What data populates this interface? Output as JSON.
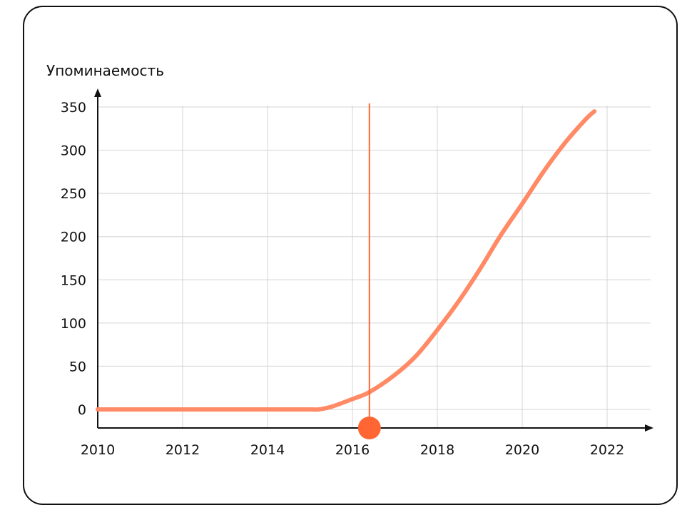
{
  "chart_data": {
    "type": "line",
    "title": "",
    "ylabel": "Упоминаемость",
    "xlabel": "",
    "xlim": [
      2010,
      2023
    ],
    "ylim": [
      -20,
      350
    ],
    "xticks": [
      2010,
      2012,
      2014,
      2016,
      2018,
      2020,
      2022
    ],
    "yticks": [
      0,
      50,
      100,
      150,
      200,
      250,
      300,
      350
    ],
    "grid": true,
    "colors": {
      "series": "#ff8a65",
      "marker": "#ff6633",
      "axis": "#111111",
      "grid": "#d4d4d4"
    },
    "series": [
      {
        "x": [
          2010,
          2011,
          2012,
          2013,
          2014,
          2015,
          2015.2,
          2015.5,
          2016,
          2016.4,
          2017,
          2017.5,
          2018,
          2018.5,
          2019,
          2019.5,
          2020,
          2020.5,
          2021,
          2021.5,
          2021.7
        ],
        "y": [
          0,
          0,
          0,
          0,
          0,
          0,
          0,
          3,
          12,
          20,
          40,
          62,
          92,
          125,
          162,
          202,
          238,
          275,
          308,
          336,
          345
        ]
      }
    ],
    "marker": {
      "x": 2016.4,
      "label": ""
    }
  }
}
